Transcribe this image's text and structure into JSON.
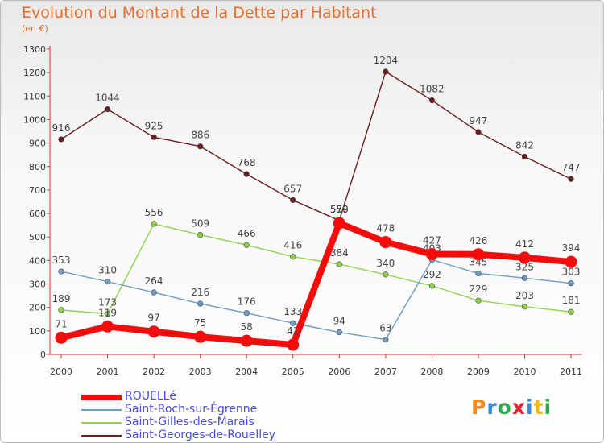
{
  "title": "Evolution du Montant de la Dette par Habitant",
  "subtitle": "(en €)",
  "logo": {
    "text": "Proxiti",
    "colors": [
      "#f08a1e",
      "#3a88d8",
      "#2ea84a",
      "#e3262a",
      "#3a88d8",
      "#f0b81e",
      "#2ea84a"
    ]
  },
  "chart_data": {
    "type": "line",
    "title": "Evolution du Montant de la Dette par Habitant",
    "unit": "(en €)",
    "categories": [
      "2000",
      "2001",
      "2002",
      "2003",
      "2004",
      "2005",
      "2006",
      "2007",
      "2008",
      "2009",
      "2010",
      "2011"
    ],
    "ylim": [
      0,
      1300
    ],
    "yticks": [
      0,
      100,
      200,
      300,
      400,
      500,
      600,
      700,
      800,
      900,
      1000,
      1100,
      1200,
      1300
    ],
    "grid": false,
    "legend_position": "bottom-left",
    "series": [
      {
        "name": "Saint-Georges-de-Rouelley",
        "color": "#6b1f1f",
        "values": [
          916,
          1044,
          925,
          886,
          768,
          657,
          570,
          1204,
          1082,
          947,
          842,
          747
        ]
      },
      {
        "name": "Saint-Gilles-des-Marais",
        "color": "#8fd24a",
        "values": [
          189,
          173,
          556,
          509,
          466,
          416,
          384,
          340,
          292,
          229,
          203,
          181
        ]
      },
      {
        "name": "Saint-Roch-sur-Égrenne",
        "color": "#6f9bc8",
        "values": [
          353,
          310,
          264,
          216,
          176,
          133,
          94,
          63,
          403,
          345,
          325,
          303
        ]
      },
      {
        "name": "ROUELLé",
        "color": "#f20d0d",
        "values": [
          71,
          119,
          97,
          75,
          58,
          41,
          559,
          478,
          427,
          426,
          412,
          394
        ]
      }
    ]
  }
}
